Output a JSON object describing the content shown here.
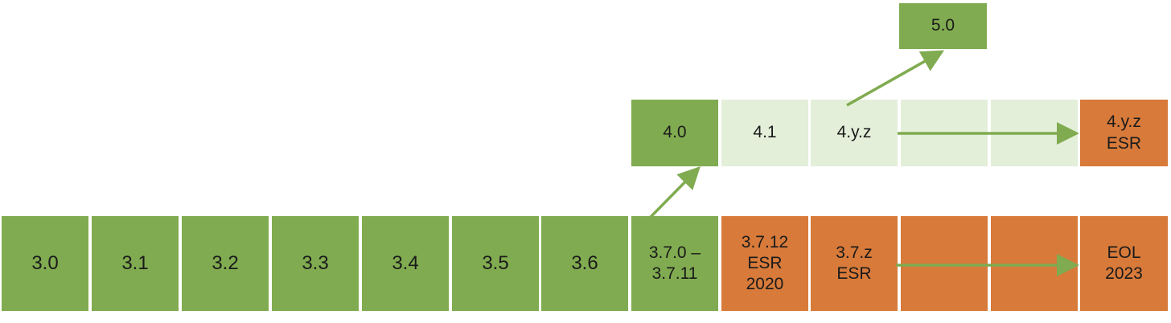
{
  "colors": {
    "green": "#80ab50",
    "orange": "#d77a3a",
    "light_green": "#e3efd9",
    "arrow": "#80ab50"
  },
  "row3": [
    "3.0",
    "3.1",
    "3.2",
    "3.3",
    "3.4",
    "3.5",
    "3.6",
    "3.7.0 –\n3.7.11",
    "3.7.12\nESR\n2020",
    "3.7.z\nESR",
    "",
    "",
    "EOL\n2023"
  ],
  "row4": [
    "4.0",
    "4.1",
    "4.y.z",
    "",
    "",
    "4.y.z\nESR"
  ],
  "top": "5.0"
}
